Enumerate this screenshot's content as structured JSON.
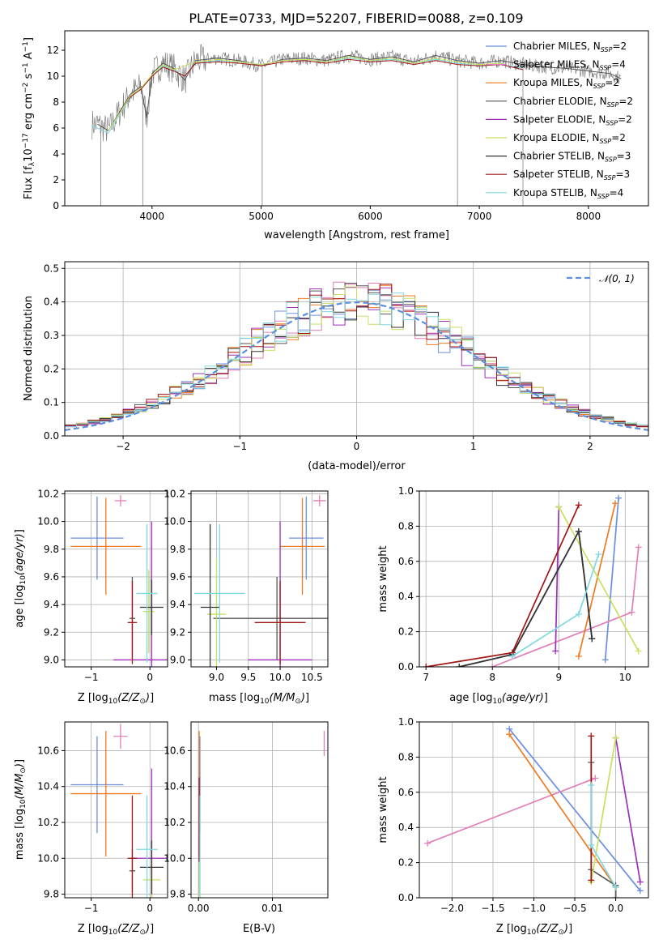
{
  "title": "PLATE=0733, MJD=52207, FIBERID=0088, z=0.109",
  "colors": {
    "chabrier_miles": "#6b8fe0",
    "salpeter_miles": "#e17fb8",
    "kroupa_miles": "#ee7a22",
    "chabrier_elodie": "#555555",
    "salpeter_elodie": "#9b30b5",
    "kroupa_elodie": "#c8e060",
    "chabrier_stelib": "#333333",
    "salpeter_stelib": "#a01515",
    "kroupa_stelib": "#80d8e0",
    "normal": "#5b8ee0"
  },
  "chart_data": [
    {
      "id": "spectrum",
      "type": "line",
      "xlabel": "wavelength [Angstrom, rest frame]",
      "ylabel": "Flux [f",
      "xlim": [
        3200,
        8550
      ],
      "ylim": [
        0,
        13.5
      ],
      "xticks": [
        4000,
        5000,
        6000,
        7000,
        8000
      ],
      "yticks": [
        0,
        2,
        4,
        6,
        8,
        10,
        12
      ],
      "grid": false,
      "legend_position": "right",
      "legend": [
        {
          "name": "Chabrier MILES, N",
          "sub": "SSP",
          "tail": "=2",
          "key": "chabrier_miles"
        },
        {
          "name": "Salpeter MILES, N",
          "sub": "SSP",
          "tail": "=4",
          "key": "salpeter_miles"
        },
        {
          "name": "Kroupa MILES, N",
          "sub": "SSP",
          "tail": "=2",
          "key": "kroupa_miles"
        },
        {
          "name": "Chabrier ELODIE, N",
          "sub": "SSP",
          "tail": "=2",
          "key": "chabrier_elodie"
        },
        {
          "name": "Salpeter ELODIE, N",
          "sub": "SSP",
          "tail": "=2",
          "key": "salpeter_elodie"
        },
        {
          "name": "Kroupa ELODIE, N",
          "sub": "SSP",
          "tail": "=2",
          "key": "kroupa_elodie"
        },
        {
          "name": "Chabrier STELIB, N",
          "sub": "SSP",
          "tail": "=3",
          "key": "chabrier_stelib"
        },
        {
          "name": "Salpeter STELIB, N",
          "sub": "SSP",
          "tail": "=3",
          "key": "salpeter_stelib"
        },
        {
          "name": "Kroupa STELIB, N",
          "sub": "SSP",
          "tail": "=4",
          "key": "kroupa_stelib"
        }
      ],
      "series": [
        {
          "key": "chabrier_elodie",
          "x": [
            3500,
            3600,
            3700,
            3800,
            3900,
            3950,
            4000,
            4100,
            4200,
            4300,
            4400,
            4600,
            4800,
            5000,
            5200,
            5400,
            5600,
            5800,
            6000,
            6200,
            6400,
            6600,
            6800,
            7000,
            7200,
            7400,
            7600,
            7800,
            8000,
            8200,
            8300
          ],
          "y": [
            6.3,
            5.8,
            7.2,
            8.6,
            9.2,
            6.8,
            10.2,
            11,
            10.6,
            9.7,
            11.2,
            11.4,
            11.2,
            10.8,
            11.3,
            11.4,
            11.2,
            11.6,
            11.3,
            11.5,
            11.1,
            11.6,
            11.2,
            11,
            11.2,
            10.9,
            10.7,
            10.6,
            10.4,
            10.2,
            9.8
          ]
        },
        {
          "key": "kroupa_stelib",
          "x": [
            3450,
            3500,
            3600,
            3700,
            3800,
            3900,
            4000,
            4100,
            4200,
            4300,
            4400,
            4600,
            4800,
            5000,
            5200,
            5400,
            5600,
            5800,
            6000,
            6200,
            6400,
            6600,
            6800,
            7000,
            7200,
            7400
          ],
          "y": [
            6.2,
            6.0,
            5.6,
            7.0,
            8.4,
            9.0,
            10,
            10.8,
            10.5,
            10,
            11,
            11.2,
            11.1,
            10.9,
            11.2,
            11.3,
            11.1,
            11.4,
            11.2,
            11.3,
            11,
            11.3,
            11,
            10.8,
            10.9,
            10.6
          ]
        },
        {
          "key": "salpeter_stelib",
          "x": [
            3700,
            3800,
            3900,
            4000,
            4100,
            4200,
            4300,
            4400,
            4600,
            4800,
            5000,
            5200,
            5400,
            5600,
            5800,
            6000,
            6200,
            6400,
            6600,
            6800,
            7000,
            7200,
            7400
          ],
          "y": [
            7.2,
            8.4,
            9.0,
            10,
            10.7,
            10.4,
            10,
            11,
            11.1,
            11,
            10.8,
            11.1,
            11.2,
            11,
            11.3,
            11.1,
            11.2,
            10.9,
            11.2,
            10.9,
            10.8,
            10.9,
            10.5
          ]
        },
        {
          "key": "kroupa_elodie",
          "x": [
            3600,
            3700,
            3800,
            3900,
            4000,
            4100,
            4200,
            4400,
            4600,
            4800,
            5000,
            5200,
            5400,
            5600,
            5800,
            6000,
            6200,
            6400,
            6600,
            6800,
            7000,
            7200
          ],
          "y": [
            5.8,
            7.1,
            8.5,
            9.1,
            10.1,
            10.9,
            10.5,
            11.1,
            11.3,
            11.1,
            10.9,
            11.2,
            11.3,
            11.1,
            11.5,
            11.2,
            11.4,
            11,
            11.4,
            11.1,
            10.9,
            11
          ]
        }
      ],
      "spikes_x": [
        3530,
        3915,
        5010,
        6800,
        7400
      ]
    },
    {
      "id": "residuals",
      "type": "line",
      "xlabel": "(data-model)/error",
      "ylabel": "Normed distribution",
      "xlim": [
        -2.5,
        2.5
      ],
      "ylim": [
        0,
        0.52
      ],
      "xticks": [
        -2,
        -1,
        0,
        1,
        2
      ],
      "yticks": [
        0.0,
        0.1,
        0.2,
        0.3,
        0.4,
        0.5
      ],
      "grid": true,
      "legend_position": "top-right",
      "legend_label": "𝒩(0, 1)",
      "normal_curve": {
        "mean": 0,
        "sd": 1
      },
      "histogram_bin_width": 0.1
    },
    {
      "id": "age_vs_Z",
      "type": "scatter",
      "xlabel": "Z [log",
      "ylabel": "age  [log",
      "xlim": [
        -1.45,
        0.3
      ],
      "ylim": [
        8.95,
        10.22
      ],
      "xticks": [
        -1,
        0
      ],
      "yticks": [
        9.0,
        9.2,
        9.4,
        9.6,
        9.8,
        10.0,
        10.2
      ],
      "grid": true,
      "points": [
        {
          "key": "chabrier_miles",
          "x": -0.9,
          "y": 9.88,
          "xerr": 0.45,
          "yerr": 0.3
        },
        {
          "key": "salpeter_miles",
          "x": -0.5,
          "y": 10.15,
          "xerr": 0.1,
          "yerr": 0.04
        },
        {
          "key": "kroupa_miles",
          "x": -0.75,
          "y": 9.82,
          "xerr": 0.6,
          "yerr": 0.35
        },
        {
          "key": "chabrier_elodie",
          "x": -0.3,
          "y": 9.3,
          "xerr": 0.05,
          "yerr": 0.3
        },
        {
          "key": "salpeter_elodie",
          "x": 0.03,
          "y": 9.0,
          "xerr": 0.65,
          "yerr": 1.0
        },
        {
          "key": "kroupa_elodie",
          "x": -0.02,
          "y": 9.35,
          "xerr": 0.1,
          "yerr": 0.3
        },
        {
          "key": "chabrier_stelib",
          "x": 0.03,
          "y": 9.38,
          "xerr": 0.2,
          "yerr": 0.2
        },
        {
          "key": "salpeter_stelib",
          "x": -0.3,
          "y": 9.27,
          "xerr": 0.08,
          "yerr": 0.3
        },
        {
          "key": "kroupa_stelib",
          "x": -0.05,
          "y": 9.48,
          "xerr": 0.18,
          "yerr": 0.5
        }
      ]
    },
    {
      "id": "age_vs_mass",
      "type": "scatter",
      "xlabel": "mass [log",
      "ylabel": "",
      "xlim": [
        8.6,
        10.75
      ],
      "ylim": [
        8.95,
        10.22
      ],
      "xticks": [
        9.0,
        9.5,
        10.0,
        10.5
      ],
      "yticks": [
        9.0,
        9.2,
        9.4,
        9.6,
        9.8,
        10.0,
        10.2
      ],
      "grid": true,
      "points": [
        {
          "key": "chabrier_miles",
          "x": 10.41,
          "y": 9.88,
          "xerr": 0.27,
          "yerr": 0.3
        },
        {
          "key": "salpeter_miles",
          "x": 10.62,
          "y": 10.15,
          "xerr": 0.1,
          "yerr": 0.04
        },
        {
          "key": "kroupa_miles",
          "x": 10.35,
          "y": 9.82,
          "xerr": 0.35,
          "yerr": 0.35
        },
        {
          "key": "chabrier_elodie",
          "x": 9.95,
          "y": 9.3,
          "xerr": 1.0,
          "yerr": 0.3
        },
        {
          "key": "salpeter_elodie",
          "x": 10.0,
          "y": 9.0,
          "xerr": 0.5,
          "yerr": 1.0
        },
        {
          "key": "kroupa_elodie",
          "x": 9.0,
          "y": 9.33,
          "xerr": 0.15,
          "yerr": 0.4
        },
        {
          "key": "chabrier_stelib",
          "x": 8.9,
          "y": 9.38,
          "xerr": 0.15,
          "yerr": 0.6
        },
        {
          "key": "salpeter_stelib",
          "x": 10.0,
          "y": 9.27,
          "xerr": 0.4,
          "yerr": 0.3
        },
        {
          "key": "kroupa_stelib",
          "x": 9.05,
          "y": 9.48,
          "xerr": 0.4,
          "yerr": 0.5
        }
      ]
    },
    {
      "id": "weight_vs_age",
      "type": "line",
      "xlabel": "age  [log",
      "ylabel": "mass weight",
      "xlim": [
        6.9,
        10.35
      ],
      "ylim": [
        0,
        1
      ],
      "xticks": [
        7,
        8,
        9,
        10
      ],
      "yticks": [
        0.0,
        0.2,
        0.4,
        0.6,
        0.8,
        1.0
      ],
      "grid": true,
      "series": [
        {
          "key": "chabrier_miles",
          "x": [
            9.7,
            9.9
          ],
          "y": [
            0.04,
            0.96
          ]
        },
        {
          "key": "salpeter_miles",
          "x": [
            8.0,
            10.1,
            10.2
          ],
          "y": [
            0.0,
            0.31,
            0.68
          ]
        },
        {
          "key": "kroupa_miles",
          "x": [
            9.3,
            9.85
          ],
          "y": [
            0.06,
            0.93
          ]
        },
        {
          "key": "chabrier_elodie",
          "x": [
            7.5,
            8.3,
            9.3,
            9.5
          ],
          "y": [
            0.0,
            0.07,
            0.77,
            0.16
          ]
        },
        {
          "key": "salpeter_elodie",
          "x": [
            8.95,
            9.0
          ],
          "y": [
            0.09,
            0.91
          ]
        },
        {
          "key": "kroupa_elodie",
          "x": [
            9.0,
            10.2
          ],
          "y": [
            0.91,
            0.09
          ]
        },
        {
          "key": "chabrier_stelib",
          "x": [
            7.5,
            8.3,
            9.3,
            9.5
          ],
          "y": [
            0.0,
            0.07,
            0.77,
            0.16
          ]
        },
        {
          "key": "salpeter_stelib",
          "x": [
            7.0,
            8.3,
            9.3
          ],
          "y": [
            0.0,
            0.08,
            0.92
          ]
        },
        {
          "key": "kroupa_stelib",
          "x": [
            8.3,
            9.3,
            9.6
          ],
          "y": [
            0.06,
            0.3,
            0.64
          ]
        }
      ]
    },
    {
      "id": "mass_vs_Z",
      "type": "scatter",
      "xlabel": "Z [log",
      "ylabel": "mass [log",
      "xlim": [
        -1.45,
        0.3
      ],
      "ylim": [
        9.78,
        10.76
      ],
      "xticks": [
        -1,
        0
      ],
      "yticks": [
        9.8,
        10.0,
        10.2,
        10.4,
        10.6
      ],
      "grid": true,
      "points": [
        {
          "key": "chabrier_miles",
          "x": -0.9,
          "y": 10.41,
          "xerr": 0.45,
          "yerr": 0.27
        },
        {
          "key": "salpeter_miles",
          "x": -0.5,
          "y": 10.68,
          "xerr": 0.12,
          "yerr": 0.07
        },
        {
          "key": "kroupa_miles",
          "x": -0.75,
          "y": 10.36,
          "xerr": 0.6,
          "yerr": 0.35
        },
        {
          "key": "chabrier_elodie",
          "x": -0.3,
          "y": 9.93,
          "xerr": 0.05,
          "yerr": 0.12
        },
        {
          "key": "salpeter_elodie",
          "x": 0.03,
          "y": 10.0,
          "xerr": 0.35,
          "yerr": 0.5
        },
        {
          "key": "kroupa_elodie",
          "x": 0.03,
          "y": 9.88,
          "xerr": 0.15,
          "yerr": 0.1
        },
        {
          "key": "chabrier_stelib",
          "x": 0.03,
          "y": 9.95,
          "xerr": 0.2,
          "yerr": 0.15
        },
        {
          "key": "salpeter_stelib",
          "x": -0.3,
          "y": 10.0,
          "xerr": 0.08,
          "yerr": 0.35
        },
        {
          "key": "kroupa_stelib",
          "x": -0.05,
          "y": 10.05,
          "xerr": 0.18,
          "yerr": 0.3
        }
      ]
    },
    {
      "id": "mass_vs_ebv",
      "type": "scatter",
      "xlabel": "E(B-V)",
      "ylabel": "",
      "xlim": [
        -0.001,
        0.0175
      ],
      "ylim": [
        9.78,
        10.76
      ],
      "xticks": [
        0.0,
        0.01
      ],
      "xticklabels": [
        "0.00",
        "0.01"
      ],
      "yticks": [
        9.8,
        10.0,
        10.2,
        10.4,
        10.6
      ],
      "grid": true,
      "points": [
        {
          "key": "chabrier_miles",
          "x": 0.0002,
          "y": 10.41,
          "xerr": 0,
          "yerr": 0.27
        },
        {
          "key": "salpeter_miles",
          "x": 0.017,
          "y": 10.64,
          "xerr": 0,
          "yerr": 0.07
        },
        {
          "key": "kroupa_miles",
          "x": 0.0001,
          "y": 10.36,
          "xerr": 0,
          "yerr": 0.35
        },
        {
          "key": "salpeter_stelib",
          "x": 0.0001,
          "y": 10.0,
          "xerr": 0,
          "yerr": 0.45
        },
        {
          "key": "kroupa_elodie",
          "x": 0.0001,
          "y": 9.88,
          "xerr": 0,
          "yerr": 0.1
        },
        {
          "key": "kroupa_stelib",
          "x": 0.0002,
          "y": 10.05,
          "xerr": 0,
          "yerr": 0.3
        }
      ]
    },
    {
      "id": "weight_vs_Z",
      "type": "line",
      "xlabel": "Z [log",
      "ylabel": "mass weight",
      "xlim": [
        -2.4,
        0.4
      ],
      "ylim": [
        0,
        1
      ],
      "xticks": [
        -2.0,
        -1.5,
        -1.0,
        -0.5,
        0.0
      ],
      "yticks": [
        0.0,
        0.2,
        0.4,
        0.6,
        0.8,
        1.0
      ],
      "grid": true,
      "series": [
        {
          "key": "chabrier_miles",
          "x": [
            -1.3,
            0.3
          ],
          "y": [
            0.96,
            0.04
          ]
        },
        {
          "key": "salpeter_miles",
          "x": [
            -2.3,
            -0.25
          ],
          "y": [
            0.31,
            0.68
          ]
        },
        {
          "key": "kroupa_miles",
          "x": [
            -1.3,
            0.0
          ],
          "y": [
            0.93,
            0.06
          ]
        },
        {
          "key": "chabrier_elodie",
          "x": [
            -0.3,
            -0.3,
            0.0,
            0.0
          ],
          "y": [
            0.77,
            0.16,
            0.07,
            0.0
          ]
        },
        {
          "key": "salpeter_elodie",
          "x": [
            0.0,
            0.3
          ],
          "y": [
            0.91,
            0.09
          ]
        },
        {
          "key": "kroupa_elodie",
          "x": [
            -0.3,
            0.0
          ],
          "y": [
            0.09,
            0.91
          ]
        },
        {
          "key": "salpeter_stelib",
          "x": [
            -0.3,
            -0.3
          ],
          "y": [
            0.92,
            0.1
          ]
        },
        {
          "key": "kroupa_stelib",
          "x": [
            -0.3,
            -0.3,
            0.0
          ],
          "y": [
            0.64,
            0.3,
            0.06
          ]
        }
      ]
    }
  ],
  "math": {
    "ylabel_flux_tail": "10",
    "ylabel_flux_units": "erg cm",
    "Zsun_label": "(Z/Z",
    "mass_label": "(M/M",
    "age_label": "(age/yr)"
  }
}
